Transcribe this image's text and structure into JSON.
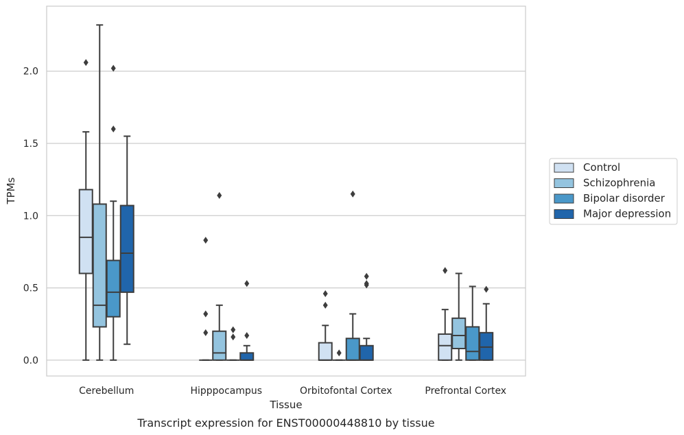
{
  "chart_data": {
    "type": "boxplot",
    "xlabel": "Tissue",
    "ylabel": "TPMs",
    "caption": "Transcript expression for ENST00000448810 by tissue",
    "ylim": [
      -0.11,
      2.45
    ],
    "yticks": [
      0.0,
      0.5,
      1.0,
      1.5,
      2.0
    ],
    "ytick_labels": [
      "0.0",
      "0.5",
      "1.0",
      "1.5",
      "2.0"
    ],
    "grid": "horizontal",
    "legend_position": "right",
    "categories": [
      "Cerebellum",
      "Hipppocampus",
      "Orbitofontal Cortex",
      "Prefrontal Cortex"
    ],
    "series": [
      {
        "name": "Control",
        "color": "#d0e1f2",
        "boxes": [
          {
            "whislo": 0.0,
            "q1": 0.6,
            "med": 0.85,
            "q3": 1.18,
            "whishi": 1.58,
            "fliers": [
              2.06
            ]
          },
          {
            "whislo": 0.0,
            "q1": 0.0,
            "med": 0.0,
            "q3": 0.0,
            "whishi": 0.0,
            "fliers": [
              0.83,
              0.32,
              0.19
            ]
          },
          {
            "whislo": 0.0,
            "q1": 0.0,
            "med": 0.0,
            "q3": 0.12,
            "whishi": 0.24,
            "fliers": [
              0.46,
              0.38
            ]
          },
          {
            "whislo": 0.0,
            "q1": 0.0,
            "med": 0.1,
            "q3": 0.18,
            "whishi": 0.35,
            "fliers": [
              0.62
            ]
          }
        ]
      },
      {
        "name": "Schizophrenia",
        "color": "#94c4df",
        "boxes": [
          {
            "whislo": 0.0,
            "q1": 0.23,
            "med": 0.38,
            "q3": 1.08,
            "whishi": 2.32,
            "fliers": []
          },
          {
            "whislo": 0.0,
            "q1": 0.0,
            "med": 0.05,
            "q3": 0.2,
            "whishi": 0.38,
            "fliers": [
              1.14
            ]
          },
          {
            "whislo": 0.0,
            "q1": 0.0,
            "med": 0.0,
            "q3": 0.0,
            "whishi": 0.0,
            "fliers": [
              0.05
            ]
          },
          {
            "whislo": 0.0,
            "q1": 0.08,
            "med": 0.17,
            "q3": 0.29,
            "whishi": 0.6,
            "fliers": []
          }
        ]
      },
      {
        "name": "Bipolar disorder",
        "color": "#4a98c9",
        "boxes": [
          {
            "whislo": 0.0,
            "q1": 0.3,
            "med": 0.47,
            "q3": 0.69,
            "whishi": 1.1,
            "fliers": [
              2.02,
              1.6
            ]
          },
          {
            "whislo": 0.0,
            "q1": 0.0,
            "med": 0.0,
            "q3": 0.0,
            "whishi": 0.0,
            "fliers": [
              0.21,
              0.16
            ]
          },
          {
            "whislo": 0.0,
            "q1": 0.0,
            "med": 0.0,
            "q3": 0.15,
            "whishi": 0.32,
            "fliers": [
              1.15
            ]
          },
          {
            "whislo": 0.0,
            "q1": 0.0,
            "med": 0.06,
            "q3": 0.23,
            "whishi": 0.51,
            "fliers": []
          }
        ]
      },
      {
        "name": "Major depression",
        "color": "#2065ab",
        "boxes": [
          {
            "whislo": 0.11,
            "q1": 0.47,
            "med": 0.74,
            "q3": 1.07,
            "whishi": 1.55,
            "fliers": []
          },
          {
            "whislo": 0.0,
            "q1": 0.0,
            "med": 0.0,
            "q3": 0.05,
            "whishi": 0.1,
            "fliers": [
              0.53,
              0.17
            ]
          },
          {
            "whislo": 0.0,
            "q1": 0.0,
            "med": 0.0,
            "q3": 0.1,
            "whishi": 0.15,
            "fliers": [
              0.58,
              0.53,
              0.52
            ]
          },
          {
            "whislo": 0.0,
            "q1": 0.0,
            "med": 0.09,
            "q3": 0.19,
            "whishi": 0.39,
            "fliers": [
              0.49
            ]
          }
        ]
      }
    ]
  }
}
